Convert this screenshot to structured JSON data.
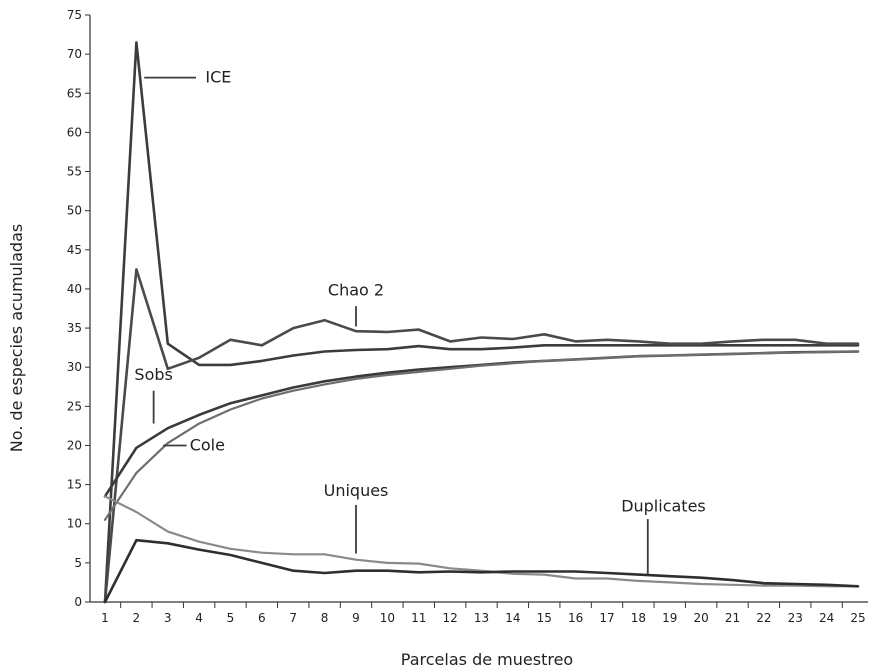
{
  "chart_data": {
    "type": "line",
    "xlabel": "Parcelas de muestreo",
    "ylabel": "No. de especies acumuladas",
    "x": [
      1,
      2,
      3,
      4,
      5,
      6,
      7,
      8,
      9,
      10,
      11,
      12,
      13,
      14,
      15,
      16,
      17,
      18,
      19,
      20,
      21,
      22,
      23,
      24,
      25
    ],
    "xlim": [
      1,
      25
    ],
    "ylim": [
      0,
      75
    ],
    "yticks": [
      0,
      5,
      10,
      15,
      20,
      25,
      30,
      35,
      40,
      45,
      50,
      55,
      60,
      65,
      70,
      75
    ],
    "grid": false,
    "legend": "none (series labeled directly on the chart with leader lines)",
    "series": [
      {
        "name": "ICE",
        "color": "#3c3c3c",
        "values": [
          0,
          71.5,
          33,
          30.3,
          30.3,
          30.8,
          31.5,
          32,
          32.2,
          32.3,
          32.7,
          32.3,
          32.3,
          32.5,
          32.8,
          32.8,
          32.8,
          32.8,
          32.8,
          32.8,
          32.8,
          32.8,
          32.8,
          32.8,
          32.8
        ]
      },
      {
        "name": "Chao 2",
        "color": "#4a4a4a",
        "values": [
          0,
          42.5,
          29.8,
          31.2,
          33.5,
          32.8,
          35,
          36,
          34.6,
          34.5,
          34.8,
          33.3,
          33.8,
          33.6,
          34.2,
          33.3,
          33.5,
          33.3,
          33,
          33,
          33.3,
          33.5,
          33.5,
          33,
          33
        ]
      },
      {
        "name": "Sobs",
        "color": "#3a3a3a",
        "values": [
          13.5,
          19.7,
          22.2,
          23.9,
          25.4,
          26.4,
          27.4,
          28.2,
          28.8,
          29.3,
          29.7,
          30,
          30.3,
          30.6,
          30.8,
          31,
          31.2,
          31.4,
          31.5,
          31.6,
          31.7,
          31.8,
          31.9,
          31.95,
          32
        ]
      },
      {
        "name": "Cole",
        "color": "#6e6e6e",
        "values": [
          10.5,
          16.5,
          20.3,
          22.8,
          24.6,
          26,
          27,
          27.8,
          28.5,
          29,
          29.4,
          29.8,
          30.2,
          30.5,
          30.8,
          31,
          31.2,
          31.4,
          31.5,
          31.6,
          31.7,
          31.8,
          31.85,
          31.95,
          32
        ]
      },
      {
        "name": "Uniques",
        "color": "#8a8a8a",
        "values": [
          13.5,
          11.5,
          9,
          7.7,
          6.8,
          6.3,
          6.1,
          6.1,
          5.4,
          5,
          4.9,
          4.3,
          4,
          3.6,
          3.5,
          3,
          3,
          2.7,
          2.5,
          2.3,
          2.2,
          2.1,
          2.1,
          2,
          2
        ]
      },
      {
        "name": "Duplicates",
        "color": "#2e2e2e",
        "values": [
          0,
          7.9,
          7.5,
          6.7,
          6,
          5,
          4,
          3.7,
          4,
          4,
          3.8,
          3.9,
          3.8,
          3.9,
          3.9,
          3.9,
          3.7,
          3.5,
          3.3,
          3.1,
          2.8,
          2.4,
          2.3,
          2.2,
          2
        ]
      }
    ],
    "annotations": [
      {
        "text": "ICE",
        "series": "ICE"
      },
      {
        "text": "Chao 2",
        "series": "Chao 2"
      },
      {
        "text": "Sobs",
        "series": "Sobs"
      },
      {
        "text": "Cole",
        "series": "Cole"
      },
      {
        "text": "Uniques",
        "series": "Uniques"
      },
      {
        "text": "Duplicates",
        "series": "Duplicates"
      }
    ]
  }
}
